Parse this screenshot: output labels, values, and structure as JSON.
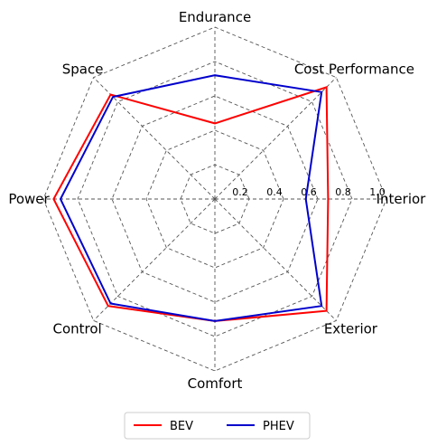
{
  "chart_data": {
    "type": "radar",
    "categories": [
      "Interior",
      "Cost Performance",
      "Endurance",
      "Space",
      "Power",
      "Control",
      "Comfort",
      "Exterior"
    ],
    "series": [
      {
        "name": "BEV",
        "color": "#ff0000",
        "values": [
          0.66,
          0.92,
          0.44,
          0.86,
          0.94,
          0.88,
          0.71,
          0.92
        ]
      },
      {
        "name": "PHEV",
        "color": "#0000cc",
        "values": [
          0.53,
          0.88,
          0.72,
          0.84,
          0.9,
          0.86,
          0.71,
          0.88
        ]
      }
    ],
    "radial_ticks": [
      "0.2",
      "0.4",
      "0.6",
      "0.8",
      "1.0"
    ],
    "rlim": [
      0,
      1.0
    ],
    "grid": true,
    "legend_position": "bottom"
  }
}
